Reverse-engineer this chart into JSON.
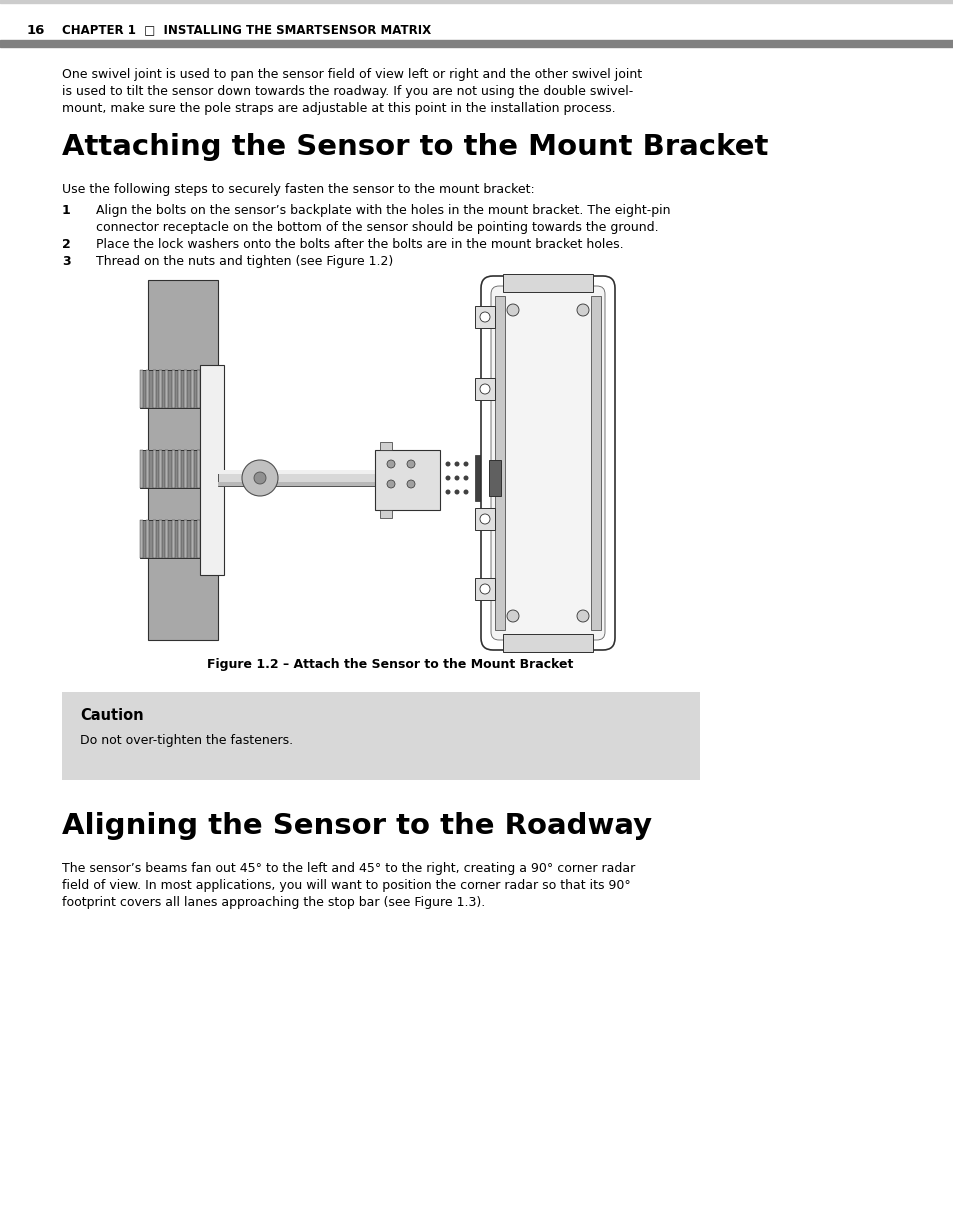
{
  "page_number": "16",
  "chapter_header": "CHAPTER 1  □  INSTALLING THE SMARTSENSOR MATRIX",
  "header_bar_color": "#808080",
  "bg_color": "#ffffff",
  "intro_text_lines": [
    "One swivel joint is used to pan the sensor field of view left or right and the other swivel joint",
    "is used to tilt the sensor down towards the roadway. If you are not using the double swivel-",
    "mount, make sure the pole straps are adjustable at this point in the installation process."
  ],
  "section1_title": "Attaching the Sensor to the Mount Bracket",
  "section1_subtitle": "Use the following steps to securely fasten the sensor to the mount bracket:",
  "steps": [
    {
      "num": "1",
      "lines": [
        "Align the bolts on the sensor’s backplate with the holes in the mount bracket. The eight-pin",
        "connector receptacle on the bottom of the sensor should be pointing towards the ground."
      ]
    },
    {
      "num": "2",
      "lines": [
        "Place the lock washers onto the bolts after the bolts are in the mount bracket holes."
      ]
    },
    {
      "num": "3",
      "lines": [
        "Thread on the nuts and tighten (see Figure 1.2)"
      ]
    }
  ],
  "figure_caption": "Figure 1.2 – Attach the Sensor to the Mount Bracket",
  "caution_bg": "#d8d8d8",
  "caution_title": "Caution",
  "caution_text": "Do not over-tighten the fasteners.",
  "section2_title": "Aligning the Sensor to the Roadway",
  "section2_text_lines": [
    "The sensor’s beams fan out 45° to the left and 45° to the right, creating a 90° corner radar",
    "field of view. In most applications, you will want to position the corner radar so that its 90°",
    "footprint covers all lanes approaching the stop bar (see Figure 1.3)."
  ],
  "pole_color": "#a8a8a8",
  "pole_dark": "#606060",
  "bracket_color": "#909090",
  "arm_color": "#c8c8c8",
  "connector_color": "#d8d8d8",
  "sensor_color": "#e8e8e8",
  "dark_line": "#303030"
}
